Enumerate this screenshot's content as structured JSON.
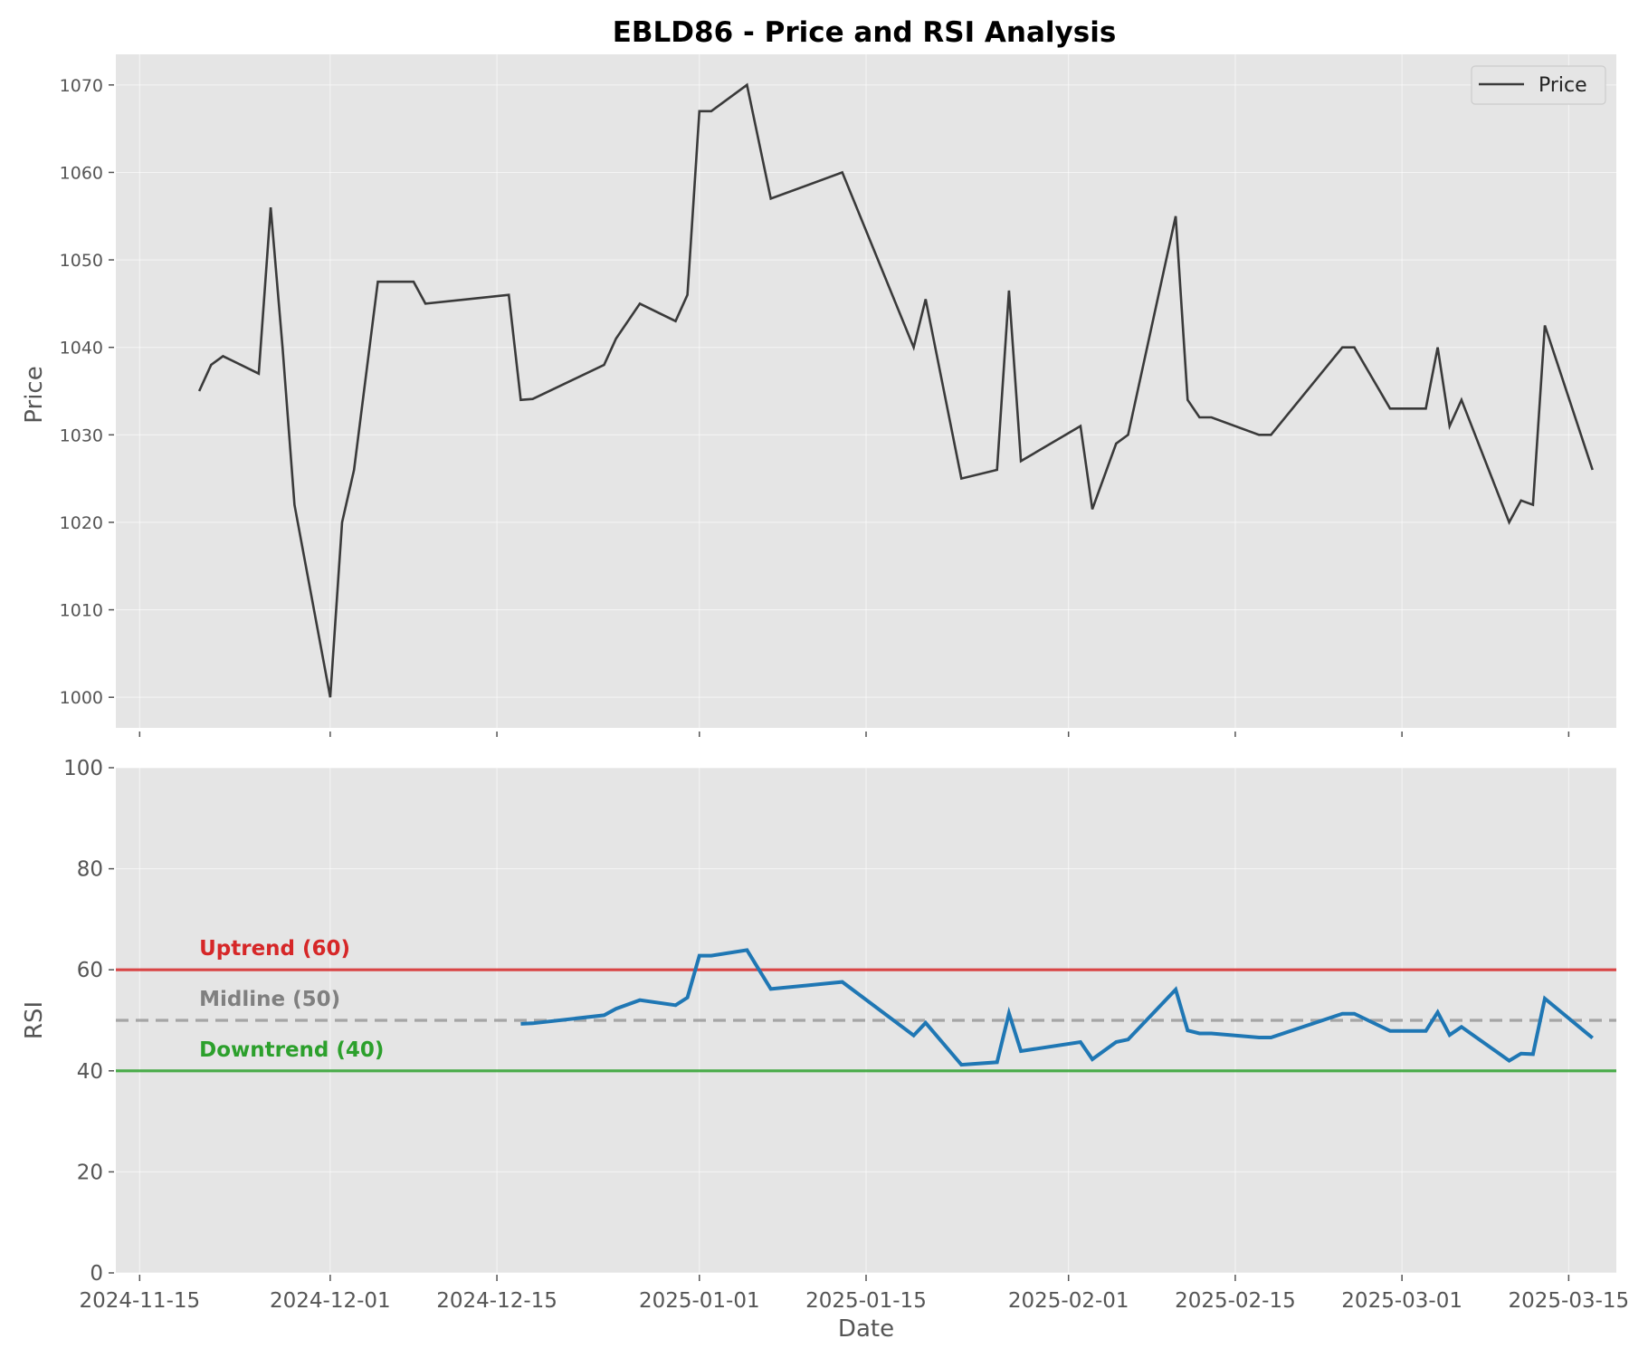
{
  "chart_data": [
    {
      "type": "line",
      "title": "EBLD86 - Price and RSI Analysis",
      "ylabel": "Price",
      "xlabel": "",
      "ylim": [
        996.5,
        1073.5
      ],
      "yticks": [
        1000,
        1010,
        1020,
        1030,
        1040,
        1050,
        1060,
        1070
      ],
      "grid": true,
      "legend": {
        "position": "top-right",
        "entries": [
          "Price"
        ]
      },
      "colors": {
        "background": "#e5e5e5",
        "line": "#3a3a3a"
      },
      "series": [
        {
          "name": "Price",
          "x": [
            "2024-11-20",
            "2024-11-21",
            "2024-11-22",
            "2024-11-25",
            "2024-11-26",
            "2024-11-27",
            "2024-11-28",
            "2024-12-01",
            "2024-12-02",
            "2024-12-03",
            "2024-12-05",
            "2024-12-08",
            "2024-12-09",
            "2024-12-16",
            "2024-12-17",
            "2024-12-18",
            "2024-12-24",
            "2024-12-25",
            "2024-12-27",
            "2024-12-30",
            "2024-12-31",
            "2025-01-01",
            "2025-01-02",
            "2025-01-05",
            "2025-01-07",
            "2025-01-13",
            "2025-01-19",
            "2025-01-20",
            "2025-01-23",
            "2025-01-26",
            "2025-01-27",
            "2025-01-28",
            "2025-02-02",
            "2025-02-03",
            "2025-02-05",
            "2025-02-06",
            "2025-02-10",
            "2025-02-11",
            "2025-02-12",
            "2025-02-13",
            "2025-02-17",
            "2025-02-18",
            "2025-02-24",
            "2025-02-25",
            "2025-02-28",
            "2025-03-03",
            "2025-03-04",
            "2025-03-05",
            "2025-03-06",
            "2025-03-10",
            "2025-03-11",
            "2025-03-12",
            "2025-03-13",
            "2025-03-17"
          ],
          "values": [
            1035,
            1038,
            1039,
            1037,
            1056,
            1040,
            1022,
            1000,
            1020,
            1026,
            1047.5,
            1047.5,
            1045,
            1046,
            1034,
            1034.1,
            1038,
            1041,
            1045,
            1043,
            1046,
            1067,
            1067,
            1070,
            1057,
            1060,
            1040,
            1045.5,
            1025,
            1026,
            1046.5,
            1027,
            1031,
            1021.5,
            1029,
            1030,
            1055,
            1034,
            1032,
            1032,
            1030,
            1030,
            1040,
            1040,
            1033,
            1033,
            1040,
            1031,
            1034,
            1020,
            1022.5,
            1022,
            1042.5,
            1026
          ]
        }
      ]
    },
    {
      "type": "line",
      "title": "",
      "ylabel": "RSI",
      "xlabel": "Date",
      "ylim": [
        0,
        100
      ],
      "yticks": [
        0,
        20,
        40,
        60,
        80,
        100
      ],
      "xlim": [
        "2024-11-13",
        "2025-03-19"
      ],
      "x_tick_labels": [
        "2024-11-15",
        "2024-12-01",
        "2024-12-15",
        "2025-01-01",
        "2025-01-15",
        "2025-02-01",
        "2025-02-15",
        "2025-03-01",
        "2025-03-15"
      ],
      "grid": true,
      "colors": {
        "background": "#e5e5e5",
        "line": "#1f77b4",
        "uptrend": "#d62728",
        "midline": "#9a9a9a",
        "downtrend": "#2ca02c"
      },
      "reference_lines": [
        {
          "name": "Uptrend (60)",
          "y": 60,
          "style": "solid",
          "color": "#d62728"
        },
        {
          "name": "Midline (50)",
          "y": 50,
          "style": "dashed",
          "color": "#808080"
        },
        {
          "name": "Downtrend (40)",
          "y": 40,
          "style": "solid",
          "color": "#2ca02c"
        }
      ],
      "series": [
        {
          "name": "RSI",
          "x": [
            "2024-12-17",
            "2024-12-18",
            "2024-12-24",
            "2024-12-25",
            "2024-12-27",
            "2024-12-30",
            "2024-12-31",
            "2025-01-01",
            "2025-01-02",
            "2025-01-05",
            "2025-01-07",
            "2025-01-13",
            "2025-01-19",
            "2025-01-20",
            "2025-01-23",
            "2025-01-26",
            "2025-01-27",
            "2025-01-28",
            "2025-02-02",
            "2025-02-03",
            "2025-02-05",
            "2025-02-06",
            "2025-02-10",
            "2025-02-11",
            "2025-02-12",
            "2025-02-13",
            "2025-02-17",
            "2025-02-18",
            "2025-02-24",
            "2025-02-25",
            "2025-02-28",
            "2025-03-03",
            "2025-03-04",
            "2025-03-05",
            "2025-03-06",
            "2025-03-10",
            "2025-03-11",
            "2025-03-12",
            "2025-03-13",
            "2025-03-17"
          ],
          "values": [
            49.3,
            49.4,
            51,
            52.3,
            54,
            53,
            54.5,
            62.8,
            62.8,
            63.9,
            56.2,
            57.6,
            47,
            49.5,
            41.2,
            41.7,
            51.4,
            43.9,
            45.7,
            42.3,
            45.7,
            46.2,
            56.1,
            48,
            47.4,
            47.4,
            46.6,
            46.6,
            51.3,
            51.3,
            47.9,
            47.9,
            51.6,
            47.1,
            48.7,
            42,
            43.4,
            43.3,
            54.3,
            46.5
          ]
        }
      ]
    }
  ]
}
